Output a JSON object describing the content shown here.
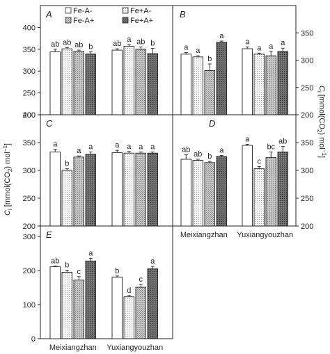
{
  "figure": {
    "ylabel_left": "C",
    "ylabel_left_sub": "i",
    "ylabel_left_rest": " [mmol(CO",
    "ylabel_left_sub2": "2",
    "ylabel_left_end": ") mol",
    "ylabel_left_sup": "−1",
    "ylabel_left_close": "]",
    "ylabel_right": "C",
    "ylabel_right_sub": "i",
    "ylabel_right_rest": " [mmol(CO",
    "ylabel_right_sub2": "2",
    "ylabel_right_end": ") mol",
    "ylabel_right_sup": "−1",
    "ylabel_right_close": "]"
  },
  "legend": [
    "Fe-A-",
    "Fe+A-",
    "Fe-A+",
    "Fe+A+"
  ],
  "colors": {
    "bar_fill_1": "#ffffff",
    "bar_fill_2": "#e4e4e4",
    "bar_fill_3": "#b4b4b4",
    "bar_fill_4": "#6e6e6e",
    "axis": "#222222"
  },
  "chart_data": [
    {
      "type": "bar",
      "panel": "A",
      "categories": [
        "Meixiangzhan",
        "Yuxiangyouzhan"
      ],
      "series": [
        {
          "name": "Fe-A-",
          "values": [
            344,
            348
          ],
          "errors": [
            6,
            3
          ]
        },
        {
          "name": "Fe+A-",
          "values": [
            351,
            357
          ],
          "errors": [
            3,
            4
          ]
        },
        {
          "name": "Fe-A+",
          "values": [
            345,
            350
          ],
          "errors": [
            3,
            5
          ]
        },
        {
          "name": "Fe+A+",
          "values": [
            339,
            340
          ],
          "errors": [
            5,
            12
          ]
        }
      ],
      "labels": [
        [
          "ab",
          "ab",
          "ab",
          "b"
        ],
        [
          "ab",
          "a",
          "ab",
          "b"
        ]
      ],
      "ylim": [
        200,
        450
      ],
      "yticks": [
        200,
        250,
        300,
        350,
        400
      ],
      "axis_side": "left",
      "show_xticks": false
    },
    {
      "type": "bar",
      "panel": "B",
      "categories": [
        "Meixiangzhan",
        "Yuxiangyouzhan"
      ],
      "series": [
        {
          "name": "Fe-A-",
          "values": [
            311,
            321
          ],
          "errors": [
            3,
            3
          ]
        },
        {
          "name": "Fe+A-",
          "values": [
            306,
            311
          ],
          "errors": [
            2,
            2
          ]
        },
        {
          "name": "Fe-A+",
          "values": [
            281,
            308
          ],
          "errors": [
            12,
            8
          ]
        },
        {
          "name": "Fe+A+",
          "values": [
            333,
            316
          ],
          "errors": [
            2,
            6
          ]
        }
      ],
      "labels": [
        [
          "a",
          "a",
          "b",
          "a"
        ],
        [
          "a",
          "a",
          "a",
          "a"
        ]
      ],
      "ylim": [
        200,
        400
      ],
      "yticks": [
        200,
        250,
        300,
        350
      ],
      "axis_side": "right",
      "show_xticks": false
    },
    {
      "type": "bar",
      "panel": "C",
      "categories": [
        "Meixiangzhan",
        "Yuxiangyouzhan"
      ],
      "series": [
        {
          "name": "Fe-A-",
          "values": [
            333,
            332
          ],
          "errors": [
            5,
            4
          ]
        },
        {
          "name": "Fe+A-",
          "values": [
            300,
            331
          ],
          "errors": [
            3,
            3
          ]
        },
        {
          "name": "Fe-A+",
          "values": [
            324,
            331
          ],
          "errors": [
            2,
            2
          ]
        },
        {
          "name": "Fe+A+",
          "values": [
            329,
            331
          ],
          "errors": [
            4,
            2
          ]
        }
      ],
      "labels": [
        [
          "a",
          "b",
          "a",
          "a"
        ],
        [
          "a",
          "a",
          "a",
          "a"
        ]
      ],
      "ylim": [
        200,
        400
      ],
      "yticks": [
        200,
        250,
        300,
        350,
        400
      ],
      "axis_side": "left",
      "show_xticks": false
    },
    {
      "type": "bar",
      "panel": "D",
      "categories": [
        "Meixiangzhan",
        "Yuxiangyouzhan"
      ],
      "series": [
        {
          "name": "Fe-A-",
          "values": [
            320,
            345
          ],
          "errors": [
            8,
            2
          ]
        },
        {
          "name": "Fe+A-",
          "values": [
            318,
            303
          ],
          "errors": [
            2,
            4
          ]
        },
        {
          "name": "Fe-A+",
          "values": [
            314,
            323
          ],
          "errors": [
            2,
            10
          ]
        },
        {
          "name": "Fe+A+",
          "values": [
            325,
            333
          ],
          "errors": [
            2,
            10
          ]
        }
      ],
      "labels": [
        [
          "ab",
          "ab",
          "b",
          "a"
        ],
        [
          "a",
          "c",
          "bc",
          "ab"
        ]
      ],
      "ylim": [
        200,
        400
      ],
      "yticks": [
        200,
        250,
        300,
        350
      ],
      "axis_side": "right",
      "show_xticks": true
    },
    {
      "type": "bar",
      "panel": "E",
      "categories": [
        "Meixiangzhan",
        "Yuxiangyouzhan"
      ],
      "series": [
        {
          "name": "Fe-A-",
          "values": [
            211,
            181
          ],
          "errors": [
            2,
            3
          ]
        },
        {
          "name": "Fe+A-",
          "values": [
            195,
            123
          ],
          "errors": [
            6,
            4
          ]
        },
        {
          "name": "Fe-A+",
          "values": [
            172,
            151
          ],
          "errors": [
            10,
            8
          ]
        },
        {
          "name": "Fe+A+",
          "values": [
            228,
            205
          ],
          "errors": [
            8,
            7
          ]
        }
      ],
      "labels": [
        [
          "ab",
          "b",
          "c",
          "a"
        ],
        [
          "b",
          "d",
          "c",
          "a"
        ]
      ],
      "ylim": [
        0,
        300
      ],
      "yticks": [
        0,
        100,
        200,
        300
      ],
      "axis_side": "left",
      "show_xticks": true
    }
  ]
}
